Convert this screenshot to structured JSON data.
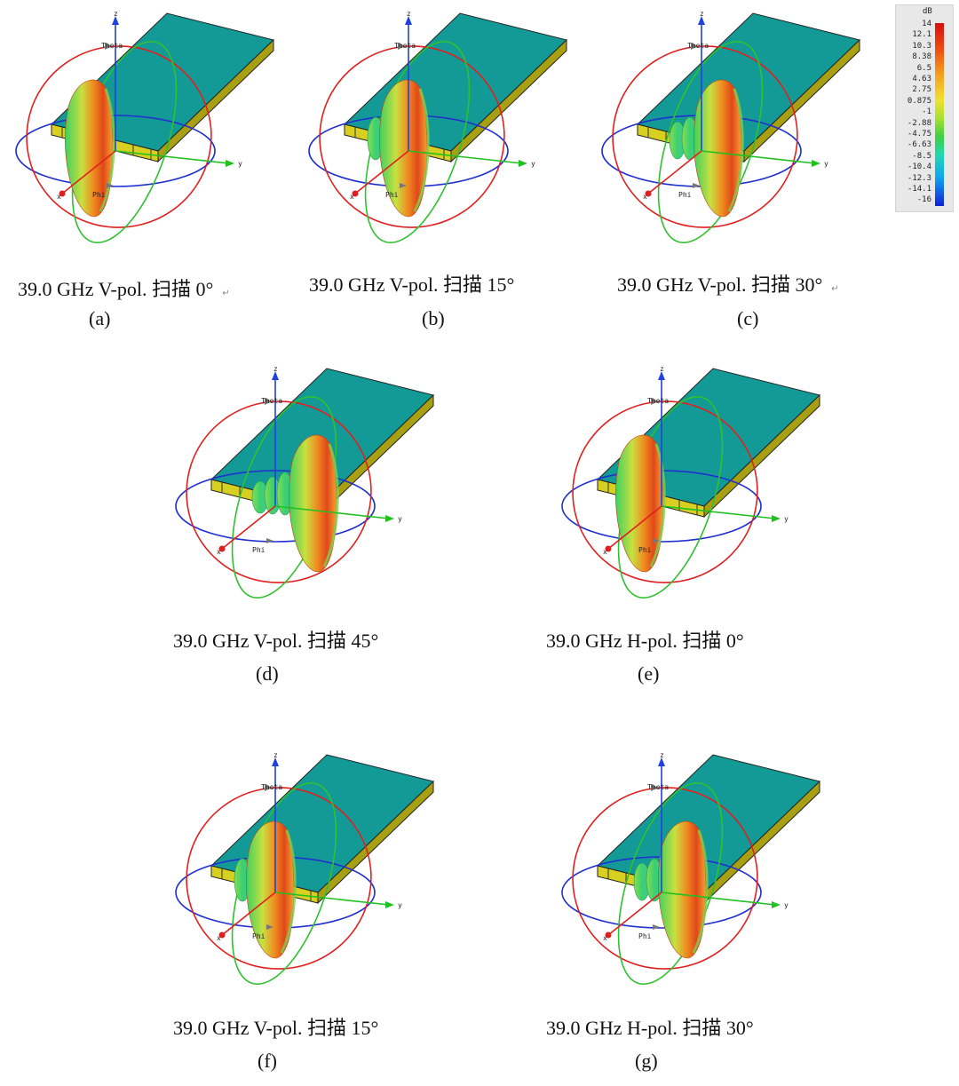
{
  "colorbar": {
    "unit": "dB",
    "ticks": [
      "14",
      "12.1",
      "10.3",
      "8.38",
      "6.5",
      "4.63",
      "2.75",
      "0.875",
      "-1",
      "-2.88",
      "-4.75",
      "-6.63",
      "-8.5",
      "-10.4",
      "-12.3",
      "-14.1",
      "-16"
    ]
  },
  "axis_labels": {
    "z": "z",
    "y": "y",
    "x": "x",
    "theta": "Theta",
    "phi": "Phi"
  },
  "panels": [
    {
      "id": "a",
      "caption": "39.0 GHz V-pol.  扫描 0°",
      "sub": "(a)",
      "pol": "V",
      "scan_deg": 0,
      "mark": "↵"
    },
    {
      "id": "b",
      "caption": "39.0 GHz V-pol.  扫描 15°",
      "sub": "(b)",
      "pol": "V",
      "scan_deg": 15,
      "mark": ""
    },
    {
      "id": "c",
      "caption": "39.0 GHz V-pol.  扫描 30°",
      "sub": "(c)",
      "pol": "V",
      "scan_deg": 30,
      "mark": "↵"
    },
    {
      "id": "d",
      "caption": "39.0 GHz V-pol.  扫描 45°",
      "sub": "(d)",
      "pol": "V",
      "scan_deg": 45,
      "mark": ""
    },
    {
      "id": "e",
      "caption": "39.0 GHz H-pol.  扫描 0°",
      "sub": "(e)",
      "pol": "H",
      "scan_deg": 0,
      "mark": ""
    },
    {
      "id": "f",
      "caption": "39.0 GHz V-pol.  扫描 15°",
      "sub": "(f)",
      "pol": "V",
      "scan_deg": 15,
      "mark": ""
    },
    {
      "id": "g",
      "caption": "39.0 GHz H-pol.  扫描 30°",
      "sub": "(g)",
      "pol": "H",
      "scan_deg": 30,
      "mark": ""
    }
  ]
}
